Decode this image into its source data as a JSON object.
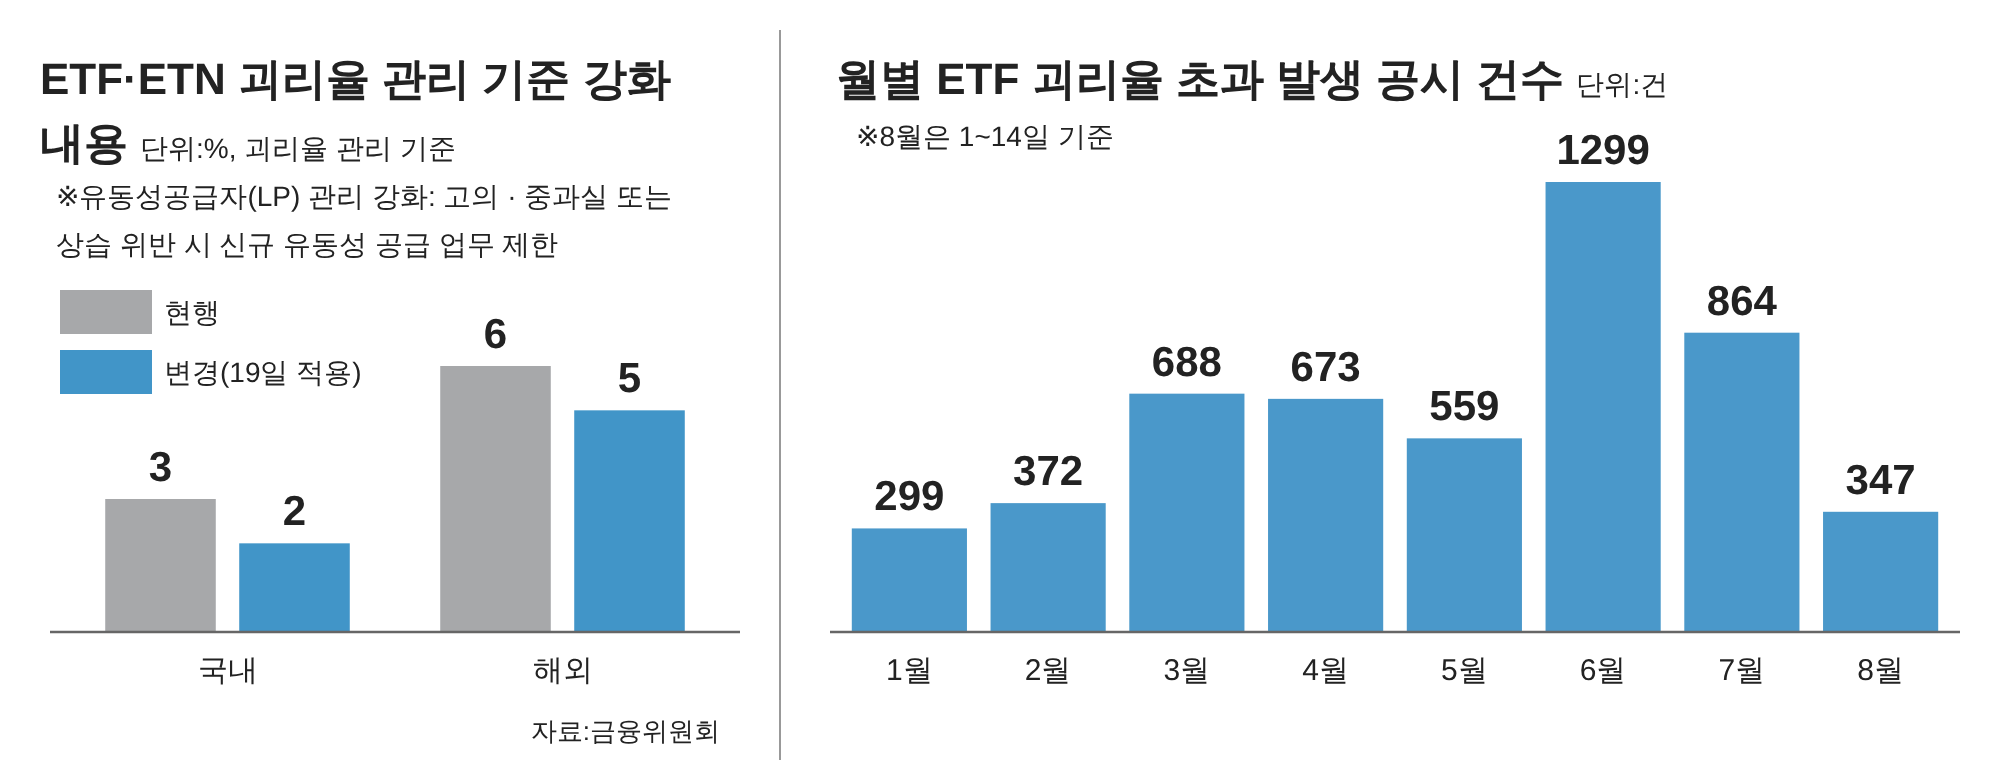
{
  "chart_data": [
    {
      "type": "bar",
      "title": "ETF·ETN 괴리율 관리 기준 강화 내용",
      "subtitle": "단위:%, 괴리율 관리 기준",
      "annotations": [
        "※유동성공급자(LP) 관리 강화: 고의 · 중과실 또는 상습 위반 시 신규 유동성 공급 업무 제한",
        "자료:금융위원회"
      ],
      "categories": [
        "국내",
        "해외"
      ],
      "series": [
        {
          "name": "현행",
          "color": "#a7a8aa",
          "values": [
            3,
            6
          ]
        },
        {
          "name": "변경(19일 적용)",
          "color": "#4195c8",
          "values": [
            2,
            5
          ]
        }
      ],
      "data_labels": true,
      "legend": "top left",
      "grid": false
    },
    {
      "type": "bar",
      "title": "월별 ETF 괴리율 초과 발생 공시 건수",
      "subtitle": "단위:건",
      "annotations": [
        "※8월은 1~14일 기준"
      ],
      "categories": [
        "1월",
        "2월",
        "3월",
        "4월",
        "5월",
        "6월",
        "7월",
        "8월"
      ],
      "series": [
        {
          "color": "#4a98ca",
          "values": [
            299,
            372,
            688,
            673,
            559,
            1299,
            864,
            347
          ]
        }
      ],
      "data_labels": true,
      "grid": false
    }
  ]
}
